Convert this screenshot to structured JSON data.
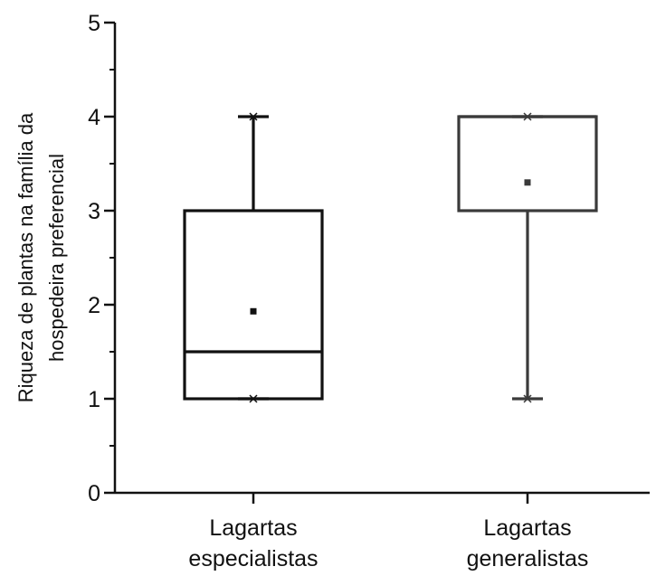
{
  "chart_data": {
    "type": "box",
    "title": "",
    "xlabel": "",
    "ylabel_lines": [
      "Riqueza de plantas na família da",
      "hospedeira preferencial"
    ],
    "ylim": [
      0,
      5
    ],
    "y_ticks": [
      "0",
      "1",
      "2",
      "3",
      "4",
      "5"
    ],
    "categories": [
      {
        "label_lines": [
          "Lagartas",
          "especialistas"
        ],
        "min": 1,
        "q1": 1,
        "median": 1.5,
        "q3": 3,
        "max": 4,
        "mean": 1.93,
        "color": "#111111"
      },
      {
        "label_lines": [
          "Lagartas",
          "generalistas"
        ],
        "min": 1,
        "q1": 3,
        "median": 4,
        "q3": 4,
        "max": 4,
        "mean": 3.3,
        "color": "#3a3a3a"
      }
    ],
    "grid": false,
    "legend": "none"
  }
}
